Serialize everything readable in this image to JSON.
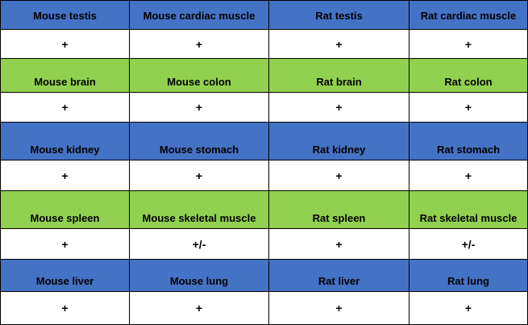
{
  "colors": {
    "blue_header": "#4472c4",
    "green_header": "#92d050",
    "value_background": "#ffffff",
    "border": "#000000"
  },
  "rows": [
    {
      "kind": "header",
      "color": "blue",
      "cells": [
        "Mouse testis",
        "Mouse cardiac muscle",
        "Rat testis",
        "Rat cardiac muscle"
      ]
    },
    {
      "kind": "value",
      "cells": [
        "+",
        "+",
        "+",
        "+"
      ]
    },
    {
      "kind": "header",
      "color": "green",
      "cells": [
        "Mouse brain",
        "Mouse colon",
        "Rat brain",
        "Rat colon"
      ]
    },
    {
      "kind": "value",
      "cells": [
        "+",
        "+",
        "+",
        "+"
      ]
    },
    {
      "kind": "header",
      "color": "blue",
      "cells": [
        "Mouse kidney",
        "Mouse stomach",
        "Rat kidney",
        "Rat stomach"
      ]
    },
    {
      "kind": "value",
      "cells": [
        "+",
        "+",
        "+",
        "+"
      ]
    },
    {
      "kind": "header",
      "color": "green",
      "cells": [
        "Mouse spleen",
        "Mouse skeletal muscle",
        "Rat spleen",
        "Rat skeletal muscle"
      ]
    },
    {
      "kind": "value",
      "cells": [
        "+",
        "+/-",
        "+",
        "+/-"
      ]
    },
    {
      "kind": "header",
      "color": "blue",
      "cells": [
        "Mouse liver",
        "Mouse lung",
        "Rat liver",
        "Rat lung"
      ]
    },
    {
      "kind": "value",
      "cells": [
        "+",
        "+",
        "+",
        "+"
      ]
    }
  ]
}
